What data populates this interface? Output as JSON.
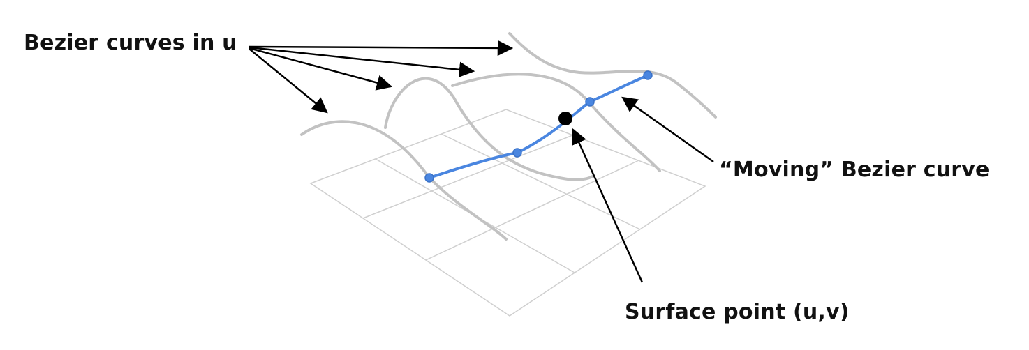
{
  "labels": {
    "curves_in_u": "Bezier curves in u",
    "moving_curve": "“Moving” Bezier curve",
    "surface_point": "Surface point (u,v)"
  },
  "colors": {
    "grid": "#cfcfcf",
    "u_curves": "#c2c2c2",
    "moving_curve": "#4a86e0",
    "control_points": "#4a86e0",
    "surface_point": "#000000",
    "arrows": "#000000",
    "text": "#111111"
  }
}
